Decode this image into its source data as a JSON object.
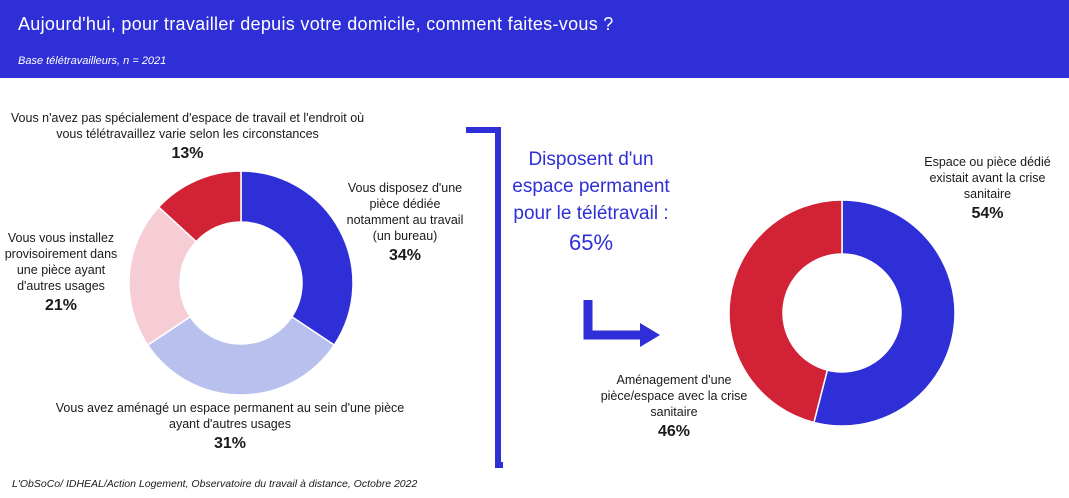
{
  "header": {
    "title": "Aujourd'hui, pour travailler depuis votre domicile, comment faites-vous ?",
    "subtitle": "Base télétravailleurs, n = 2021"
  },
  "callout": {
    "text": "Disposent d'un espace permanent pour le télétravail :",
    "value": "65%"
  },
  "source": "L'ObSoCo/ IDHEAL/Action Logement, Observatoire du travail à distance, Octobre 2022",
  "colors": {
    "brand_blue": "#2e2fd6",
    "light_blue": "#b8c0ee",
    "light_pink": "#f6cdd4",
    "red": "#d12236"
  },
  "chart_data": [
    {
      "type": "pie",
      "donut": true,
      "series": [
        {
          "label": "Vous disposez d'une pièce dédiée notamment au travail (un bureau)",
          "value": 34,
          "display": "34%",
          "color": "#2e2fd6"
        },
        {
          "label": "Vous avez aménagé un espace permanent au sein d'une pièce ayant d'autres usages",
          "value": 31,
          "display": "31%",
          "color": "#b8c0ee"
        },
        {
          "label": "Vous vous installez provisoirement dans une pièce ayant d'autres usages",
          "value": 21,
          "display": "21%",
          "color": "#f6cdd4"
        },
        {
          "label": "Vous n'avez pas spécialement d'espace de travail et l'endroit où vous télétravaillez varie selon les circonstances",
          "value": 13,
          "display": "13%",
          "color": "#d12236"
        }
      ]
    },
    {
      "type": "pie",
      "donut": true,
      "series": [
        {
          "label": "Espace ou pièce dédié existait avant la crise sanitaire",
          "value": 54,
          "display": "54%",
          "color": "#2e2fd6"
        },
        {
          "label": "Aménagement d'une pièce/espace avec la crise sanitaire",
          "value": 46,
          "display": "46%",
          "color": "#d12236"
        }
      ]
    }
  ]
}
